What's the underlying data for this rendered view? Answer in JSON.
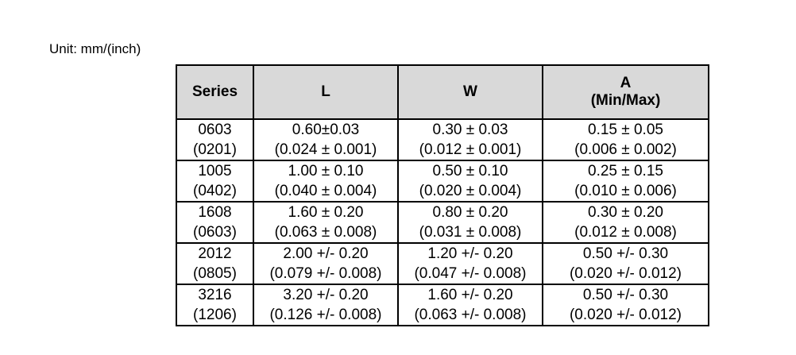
{
  "unit_label": "Unit: mm/(inch)",
  "table": {
    "headers": {
      "series": "Series",
      "l": "L",
      "w": "W",
      "a_line1": "A",
      "a_line2": "(Min/Max)"
    },
    "rows": [
      {
        "series": "0603",
        "series_inch": "(0201)",
        "l": "0.60±0.03",
        "l_inch": "(0.024 ± 0.001)",
        "w": "0.30 ± 0.03",
        "w_inch": "(0.012 ± 0.001)",
        "a": "0.15 ± 0.05",
        "a_inch": "(0.006 ± 0.002)"
      },
      {
        "series": "1005",
        "series_inch": "(0402)",
        "l": "1.00 ± 0.10",
        "l_inch": "(0.040 ± 0.004)",
        "w": "0.50 ± 0.10",
        "w_inch": "(0.020 ± 0.004)",
        "a": "0.25 ± 0.15",
        "a_inch": "(0.010 ± 0.006)"
      },
      {
        "series": "1608",
        "series_inch": "(0603)",
        "l": "1.60 ± 0.20",
        "l_inch": "(0.063 ± 0.008)",
        "w": "0.80 ± 0.20",
        "w_inch": "(0.031 ± 0.008)",
        "a": "0.30 ± 0.20",
        "a_inch": "(0.012 ± 0.008)"
      },
      {
        "series": "2012",
        "series_inch": "(0805)",
        "l": "2.00 +/- 0.20",
        "l_inch": "(0.079 +/- 0.008)",
        "w": "1.20 +/- 0.20",
        "w_inch": "(0.047 +/- 0.008)",
        "a": "0.50 +/- 0.30",
        "a_inch": "(0.020 +/- 0.012)"
      },
      {
        "series": "3216",
        "series_inch": "(1206)",
        "l": "3.20 +/- 0.20",
        "l_inch": "(0.126 +/- 0.008)",
        "w": "1.60 +/- 0.20",
        "w_inch": "(0.063 +/- 0.008)",
        "a": "0.50 +/- 0.30",
        "a_inch": "(0.020 +/- 0.012)"
      }
    ]
  }
}
